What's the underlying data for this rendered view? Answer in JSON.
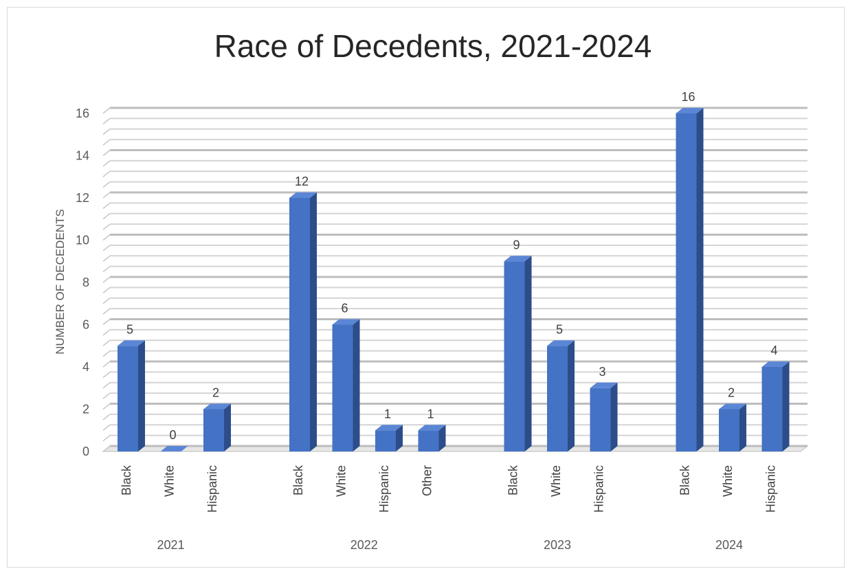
{
  "chart_data": {
    "type": "bar",
    "title": "Race of Decedents, 2021-2024",
    "ylabel": "NUMBER OF DECEDENTS",
    "xlabel": "",
    "ylim": [
      0,
      16
    ],
    "yticks": [
      0,
      2,
      4,
      6,
      8,
      10,
      12,
      14,
      16
    ],
    "grid": true,
    "style": "3d-column",
    "bar_color": "#4472c4",
    "groups": [
      {
        "label": "2021",
        "categories": [
          "Black",
          "White",
          "Hispanic"
        ],
        "values": [
          5,
          0,
          2
        ]
      },
      {
        "label": "2022",
        "categories": [
          "Black",
          "White",
          "Hispanic",
          "Other"
        ],
        "values": [
          12,
          6,
          1,
          1
        ]
      },
      {
        "label": "2023",
        "categories": [
          "Black",
          "White",
          "Hispanic"
        ],
        "values": [
          9,
          5,
          3
        ]
      },
      {
        "label": "2024",
        "categories": [
          "Black",
          "White",
          "Hispanic"
        ],
        "values": [
          16,
          2,
          4
        ]
      }
    ]
  }
}
